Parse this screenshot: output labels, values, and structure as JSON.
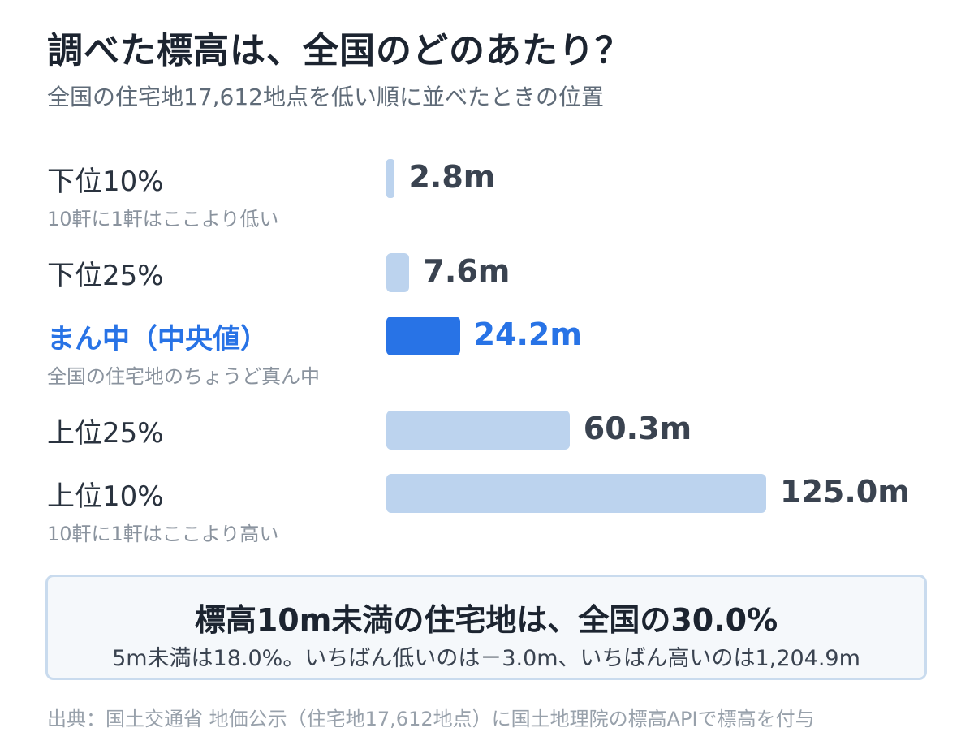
{
  "title": "調べた標高は、全国のどのあたり？",
  "subtitle": "全国の住宅地17,612地点を低い順に並べたときの位置",
  "chart_data": {
    "type": "bar",
    "orientation": "horizontal",
    "unit": "m",
    "categories": [
      "下位10%",
      "下位25%",
      "まん中（中央値）",
      "上位25%",
      "上位10%"
    ],
    "notes": [
      "10軒に1軒はここより低い",
      "",
      "全国の住宅地のちょうど真ん中",
      "",
      "10軒に1軒はここより高い"
    ],
    "values": [
      2.8,
      7.6,
      24.2,
      60.3,
      125.0
    ],
    "value_labels": [
      "2.8m",
      "7.6m",
      "24.2m",
      "60.3m",
      "125.0m"
    ],
    "highlight_index": 2,
    "colors": {
      "bar": "#bcd3ee",
      "highlight": "#2873e6"
    }
  },
  "summary": {
    "main": "標高10m未満の住宅地は、全国の30.0%",
    "sub": "5m未満は18.0%。いちばん低いのは－3.0m、いちばん高いのは1,204.9m"
  },
  "source": "出典：国土交通省 地価公示（住宅地17,612地点）に国土地理院の標高APIで標高を付与"
}
